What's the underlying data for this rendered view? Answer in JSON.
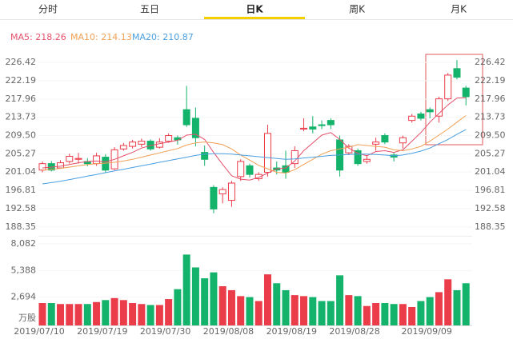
{
  "tabs": [
    "分时",
    "五日",
    "日K",
    "周K",
    "月K"
  ],
  "active_tab": "日K",
  "chart_data": {
    "type": "candlestick",
    "up_color": "#eb3c4a",
    "down_color": "#14b36b",
    "categories": [
      "2019/07/10",
      null,
      null,
      null,
      null,
      null,
      null,
      "2019/07/19",
      null,
      null,
      null,
      null,
      null,
      null,
      "2019/07/30",
      null,
      null,
      null,
      null,
      null,
      null,
      "2019/08/08",
      null,
      null,
      null,
      null,
      null,
      null,
      "2019/08/19",
      null,
      null,
      null,
      null,
      null,
      null,
      "2019/08/28",
      null,
      null,
      null,
      null,
      null,
      null,
      null,
      "2019/09/09",
      null,
      null,
      null,
      null
    ],
    "open": [
      201.5,
      203.0,
      202.0,
      203.5,
      204.0,
      203.5,
      203.0,
      204.5,
      201.8,
      206.4,
      207.0,
      207.5,
      208.2,
      206.8,
      208.2,
      209.0,
      215.5,
      213.5,
      205.6,
      197.5,
      196.0,
      194.5,
      200.0,
      202.5,
      199.5,
      201.0,
      202.0,
      202.5,
      203.0,
      211.0,
      211.5,
      212.0,
      213.0,
      208.5,
      205.5,
      206.0,
      203.5,
      207.5,
      209.5,
      205.0,
      207.8,
      213.0,
      214.5,
      215.5,
      214.0,
      218.0,
      225.0,
      220.5
    ],
    "high": [
      203.5,
      203.6,
      203.8,
      205.3,
      205.5,
      204.3,
      205.5,
      205.2,
      206.8,
      207.8,
      208.5,
      208.8,
      208.6,
      208.9,
      210.0,
      209.5,
      221.0,
      216.0,
      207.2,
      198.0,
      197.5,
      199.0,
      204.0,
      203.0,
      201.0,
      212.0,
      203.5,
      206.0,
      207.0,
      213.5,
      214.0,
      213.0,
      213.5,
      209.5,
      207.5,
      206.5,
      205.0,
      209.0,
      210.0,
      205.5,
      209.5,
      214.5,
      215.0,
      216.0,
      218.5,
      224.0,
      227.0,
      221.0
    ],
    "low": [
      201.0,
      201.2,
      201.8,
      203.0,
      203.0,
      202.4,
      202.5,
      201.0,
      201.5,
      206.0,
      206.5,
      206.8,
      206.0,
      206.5,
      207.8,
      207.4,
      211.5,
      207.0,
      202.5,
      191.5,
      193.8,
      193.0,
      199.0,
      199.8,
      199.0,
      200.0,
      200.5,
      199.5,
      202.0,
      210.5,
      210.0,
      211.0,
      211.0,
      200.0,
      205.0,
      202.5,
      203.0,
      206.0,
      207.5,
      203.5,
      206.5,
      212.5,
      213.0,
      213.5,
      212.5,
      217.5,
      222.5,
      216.5
    ],
    "close": [
      203.0,
      201.5,
      203.2,
      204.7,
      204.2,
      203.0,
      204.8,
      201.5,
      206.2,
      207.2,
      208.0,
      208.2,
      206.4,
      208.0,
      209.5,
      208.5,
      212.0,
      209.0,
      204.0,
      192.5,
      197.0,
      198.5,
      203.5,
      200.5,
      200.5,
      210.0,
      201.5,
      201.0,
      206.0,
      211.2,
      211.0,
      211.8,
      212.0,
      201.5,
      207.0,
      203.0,
      204.0,
      208.0,
      208.0,
      204.5,
      209.0,
      214.0,
      213.5,
      215.0,
      218.0,
      223.5,
      223.0,
      218.5
    ],
    "ylim": [
      187.2,
      228.3
    ],
    "yticks": [
      226.42,
      222.19,
      217.96,
      213.73,
      {
        "value": 209.5,
        "label": "209.50"
      },
      205.27,
      201.04,
      196.81,
      192.58,
      188.35
    ],
    "ma": [
      {
        "name": "MA5: 218.26",
        "color": "#e5506a",
        "values": [
          202.0,
          202.2,
          202.4,
          202.8,
          203.2,
          203.5,
          203.6,
          203.4,
          204.0,
          204.8,
          205.6,
          206.6,
          207.2,
          207.6,
          208.0,
          208.4,
          209.6,
          209.8,
          208.6,
          205.6,
          202.8,
          200.2,
          199.4,
          199.2,
          199.8,
          200.8,
          201.8,
          202.0,
          203.6,
          206.0,
          207.8,
          209.6,
          210.2,
          208.6,
          206.6,
          205.4,
          204.8,
          205.8,
          206.0,
          205.6,
          206.2,
          208.2,
          210.2,
          212.6,
          214.6,
          216.6,
          218.2,
          218.26
        ]
      },
      {
        "name": "MA10: 214.13",
        "color": "#f0a055",
        "values": [
          201.5,
          201.7,
          201.9,
          202.2,
          202.5,
          202.8,
          203.0,
          203.1,
          203.3,
          203.6,
          204.0,
          204.5,
          205.0,
          205.5,
          206.0,
          206.5,
          207.3,
          207.8,
          208.0,
          207.8,
          207.4,
          206.4,
          205.0,
          203.8,
          202.6,
          201.8,
          201.0,
          200.8,
          201.6,
          202.8,
          204.0,
          205.2,
          206.0,
          206.4,
          206.8,
          207.4,
          207.2,
          207.0,
          206.8,
          206.2,
          206.0,
          206.4,
          207.0,
          208.2,
          209.6,
          211.0,
          212.6,
          214.13
        ]
      },
      {
        "name": "MA20: 210.87",
        "color": "#4a9fe0",
        "values": [
          198.3,
          198.6,
          198.9,
          199.3,
          199.7,
          200.1,
          200.5,
          200.9,
          201.3,
          201.7,
          202.1,
          202.5,
          202.9,
          203.3,
          203.7,
          204.1,
          204.5,
          204.9,
          205.2,
          205.3,
          205.3,
          205.2,
          205.0,
          204.8,
          204.6,
          204.4,
          204.2,
          204.0,
          204.1,
          204.3,
          204.5,
          204.7,
          204.9,
          205.0,
          205.1,
          205.2,
          205.2,
          205.1,
          205.0,
          204.8,
          205.0,
          205.4,
          205.9,
          206.6,
          207.6,
          208.6,
          209.8,
          210.87
        ]
      }
    ],
    "volume": [
      2100,
      2100,
      2000,
      2000,
      2000,
      2000,
      2200,
      2400,
      2600,
      2400,
      2100,
      2000,
      1900,
      1900,
      2500,
      3500,
      7000,
      5700,
      4600,
      5200,
      3800,
      3400,
      2800,
      2700,
      2300,
      5000,
      4100,
      3400,
      2900,
      2800,
      2700,
      2300,
      2300,
      4900,
      2900,
      2800,
      1800,
      2100,
      2100,
      2000,
      2000,
      1700,
      2300,
      2700,
      3200,
      4500,
      3400,
      4100
    ],
    "volume_ylim": [
      0,
      8082
    ],
    "volume_yticks": [
      {
        "value": 8082,
        "label": "8,082"
      },
      {
        "value": 5388,
        "label": "5,388"
      },
      {
        "value": 2694,
        "label": "2,694"
      },
      {
        "value": 0,
        "label": "万股"
      }
    ]
  }
}
